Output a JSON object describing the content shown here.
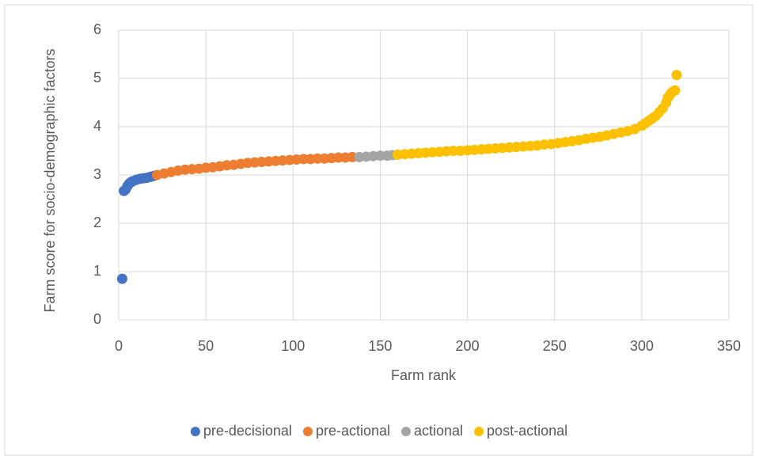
{
  "chart_data": {
    "type": "scatter",
    "x_label": "Farm rank",
    "y_label": "Farm score for socio-demographic factors",
    "xlim": [
      0,
      350
    ],
    "xticks": [
      0,
      50,
      100,
      150,
      200,
      250,
      300,
      350
    ],
    "ylim": [
      0,
      6
    ],
    "yticks": [
      0,
      1,
      2,
      3,
      4,
      5,
      6
    ],
    "grid": true,
    "legend": "bottom",
    "series": [
      {
        "name": "pre-decisional",
        "color": "#4472c4",
        "x": [
          2,
          3,
          4,
          5,
          6,
          7,
          8,
          10,
          12,
          14,
          16,
          18,
          20
        ],
        "values": [
          0.85,
          2.67,
          2.7,
          2.77,
          2.82,
          2.85,
          2.87,
          2.9,
          2.92,
          2.93,
          2.94,
          2.96,
          2.98
        ]
      },
      {
        "name": "pre-actional",
        "color": "#ed7d31",
        "x": [
          22,
          26,
          30,
          34,
          38,
          42,
          46,
          50,
          54,
          58,
          62,
          66,
          70,
          74,
          78,
          82,
          86,
          90,
          94,
          98,
          102,
          106,
          110,
          114,
          118,
          122,
          126,
          130,
          134
        ],
        "values": [
          3.0,
          3.03,
          3.06,
          3.09,
          3.11,
          3.12,
          3.13,
          3.15,
          3.16,
          3.18,
          3.2,
          3.21,
          3.23,
          3.25,
          3.26,
          3.27,
          3.28,
          3.29,
          3.3,
          3.31,
          3.32,
          3.33,
          3.33,
          3.34,
          3.34,
          3.35,
          3.36,
          3.36,
          3.37
        ]
      },
      {
        "name": "actional",
        "color": "#a5a5a5",
        "x": [
          138,
          142,
          146,
          150,
          154,
          157
        ],
        "values": [
          3.37,
          3.38,
          3.39,
          3.4,
          3.4,
          3.41
        ]
      },
      {
        "name": "post-actional",
        "color": "#ffc000",
        "x": [
          160,
          164,
          168,
          172,
          176,
          180,
          184,
          188,
          192,
          196,
          200,
          204,
          208,
          212,
          216,
          220,
          224,
          228,
          232,
          236,
          240,
          244,
          248,
          252,
          256,
          260,
          264,
          268,
          272,
          276,
          280,
          284,
          288,
          292,
          296,
          300,
          302,
          304,
          306,
          308,
          310,
          312,
          314,
          315,
          316,
          317,
          318,
          319,
          320
        ],
        "values": [
          3.42,
          3.43,
          3.44,
          3.45,
          3.46,
          3.47,
          3.48,
          3.49,
          3.5,
          3.5,
          3.51,
          3.52,
          3.53,
          3.54,
          3.55,
          3.56,
          3.57,
          3.58,
          3.59,
          3.6,
          3.61,
          3.63,
          3.64,
          3.66,
          3.68,
          3.7,
          3.72,
          3.75,
          3.77,
          3.79,
          3.82,
          3.85,
          3.88,
          3.91,
          3.95,
          4.02,
          4.07,
          4.12,
          4.17,
          4.22,
          4.3,
          4.38,
          4.5,
          4.6,
          4.65,
          4.7,
          4.73,
          4.75,
          5.07
        ]
      }
    ]
  }
}
